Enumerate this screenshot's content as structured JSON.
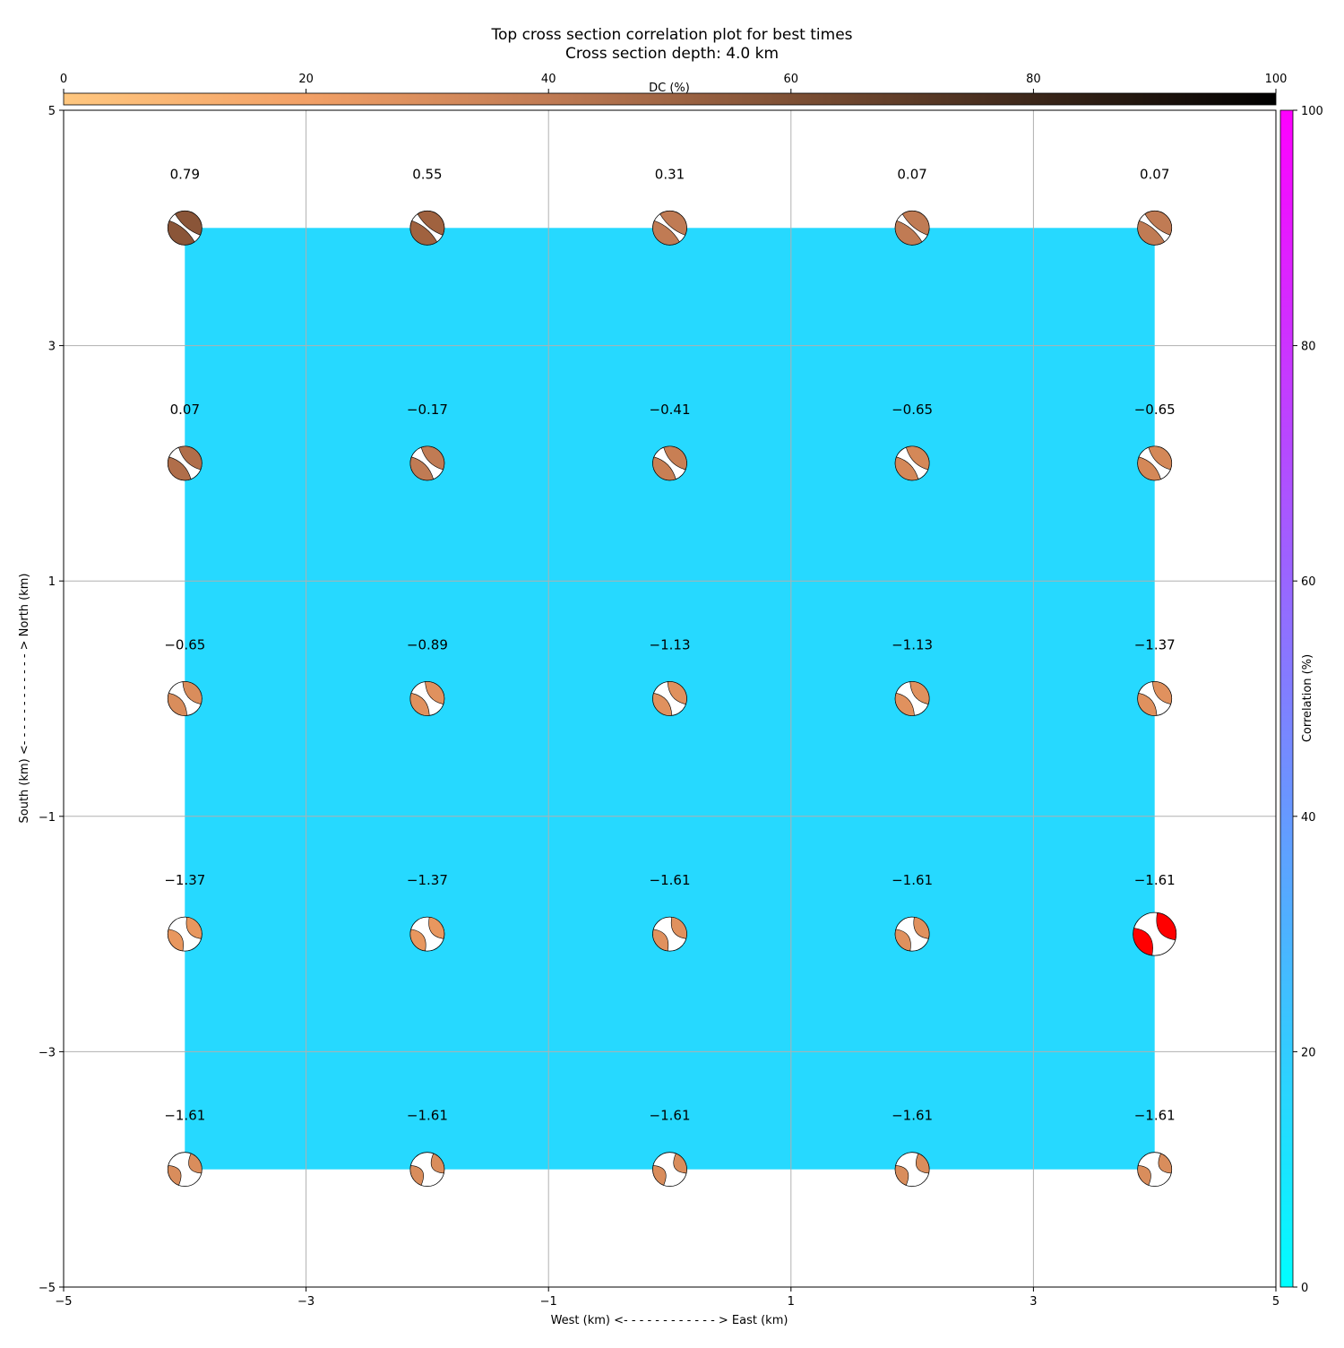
{
  "chart_data": {
    "type": "heatmap",
    "title": "Top cross section correlation plot for best times",
    "subtitle": "Cross section depth: 4.0 km",
    "xlabel": "West (km) <- - - - - - - - - - - - > East (km)",
    "ylabel": "South (km) <- - - - - - - - - - - - > North (km)",
    "xlim": [
      -5,
      5
    ],
    "ylim": [
      -5,
      5
    ],
    "xticks": [
      -5,
      -3,
      -1,
      1,
      3,
      5
    ],
    "yticks": [
      -5,
      -3,
      -1,
      1,
      3,
      5
    ],
    "grid": true,
    "dc_colorbar": {
      "label": "DC (%)",
      "placement": "top",
      "range": [
        0,
        100
      ],
      "ticks": [
        0,
        20,
        40,
        60,
        80,
        100
      ],
      "colors": [
        "#ffc77f",
        "#f2a066",
        "#c07b54",
        "#7e5035",
        "#3c271a",
        "#000000"
      ]
    },
    "correlation_colorbar": {
      "label": "Correlation (%)",
      "placement": "right",
      "range": [
        0,
        100
      ],
      "ticks": [
        0,
        20,
        40,
        60,
        80,
        100
      ],
      "colors": [
        "#00ffff",
        "#ff00ff"
      ]
    },
    "field": {
      "x_range": [
        -4,
        4
      ],
      "y_range": [
        -4,
        4
      ],
      "color": "#26d9ff"
    },
    "x_positions": [
      -4,
      -2,
      0,
      2,
      4
    ],
    "y_positions": [
      4,
      2,
      0,
      -2,
      -4
    ],
    "values": [
      [
        0.79,
        0.55,
        0.31,
        0.07,
        0.07
      ],
      [
        0.07,
        -0.17,
        -0.41,
        -0.65,
        -0.65
      ],
      [
        -0.65,
        -0.89,
        -1.13,
        -1.13,
        -1.37
      ],
      [
        -1.37,
        -1.37,
        -1.61,
        -1.61,
        -1.61
      ],
      [
        -1.61,
        -1.61,
        -1.61,
        -1.61,
        -1.61
      ]
    ],
    "best_solution": {
      "x": 4,
      "y": -2,
      "color": "#ff0000"
    },
    "beachball_colors": [
      [
        "#8a5538",
        "#a0623f",
        "#c07b54",
        "#c07b54",
        "#c07b54"
      ],
      [
        "#b06e4a",
        "#c07b54",
        "#c87f54",
        "#d48858",
        "#d48858"
      ],
      [
        "#d98d5c",
        "#e0915e",
        "#e0915e",
        "#e0915e",
        "#e0915e"
      ],
      [
        "#e8975f",
        "#e8975f",
        "#e0915e",
        "#e0915e",
        "#ff0000"
      ],
      [
        "#d98d5c",
        "#d98d5c",
        "#d98d5c",
        "#d98d5c",
        "#d98d5c"
      ]
    ]
  }
}
